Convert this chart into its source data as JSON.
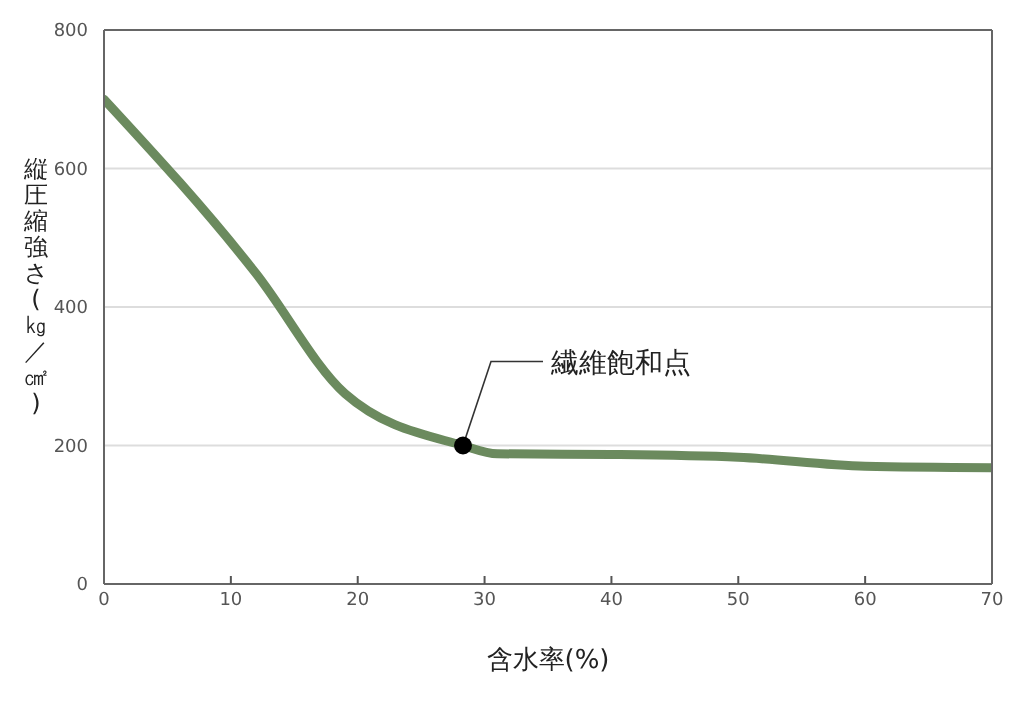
{
  "chart_data": {
    "type": "line",
    "xlabel": "含水率(%)",
    "ylabel": "縦圧縮強さ(㎏／㎠)",
    "x": [
      0,
      12,
      19,
      28.3,
      31,
      40,
      50,
      60,
      70
    ],
    "series": [
      {
        "color": "#6b8a5e",
        "values": [
          700,
          448,
          275,
          200,
          188,
          187,
          183,
          170,
          168
        ]
      }
    ],
    "xlim": [
      0,
      70
    ],
    "xticks": [
      0,
      10,
      20,
      30,
      40,
      50,
      60,
      70
    ],
    "ylim": [
      0,
      800
    ],
    "yticks": [
      0,
      200,
      400,
      600,
      800
    ],
    "grid": "y",
    "legend": false,
    "marker": "none",
    "line_style": "solid",
    "annotations": [
      {
        "text": "繊維飽和点",
        "x": 28.3,
        "y": 200
      }
    ]
  }
}
